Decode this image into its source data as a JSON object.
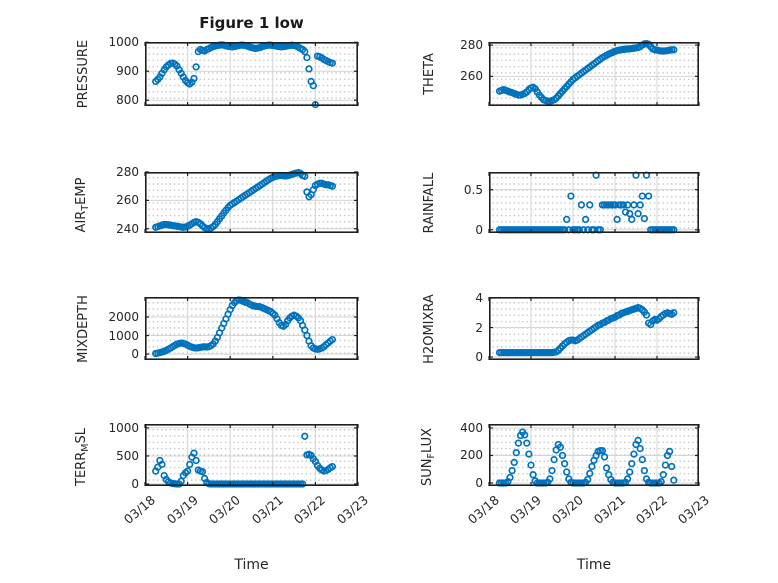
{
  "figure": {
    "title": "Figure 1 low",
    "xlabel": "Time",
    "marker_color": "#0072BD",
    "axis_color": "#1f1f1f",
    "grid_color": "#d4d4d4",
    "minor_grid_color": "#c8c8c8",
    "text_color": "#262626",
    "xlim": [
      0,
      5
    ],
    "xticks": [
      0,
      1,
      2,
      3,
      4,
      5
    ],
    "xtick_labels": [
      "03/18",
      "03/19",
      "03/20",
      "03/21",
      "03/22",
      "03/23"
    ],
    "time_days": [
      0.25,
      0.3,
      0.35,
      0.4,
      0.45,
      0.5,
      0.55,
      0.6,
      0.65,
      0.7,
      0.75,
      0.8,
      0.85,
      0.9,
      0.95,
      1.0,
      1.05,
      1.1,
      1.15,
      1.2,
      1.25,
      1.3,
      1.35,
      1.4,
      1.45,
      1.5,
      1.55,
      1.6,
      1.65,
      1.7,
      1.75,
      1.8,
      1.85,
      1.9,
      1.95,
      2.0,
      2.05,
      2.1,
      2.15,
      2.2,
      2.25,
      2.3,
      2.35,
      2.4,
      2.45,
      2.5,
      2.55,
      2.6,
      2.65,
      2.7,
      2.75,
      2.8,
      2.85,
      2.9,
      2.95,
      3.0,
      3.05,
      3.1,
      3.15,
      3.2,
      3.25,
      3.3,
      3.35,
      3.4,
      3.45,
      3.5,
      3.55,
      3.6,
      3.65,
      3.7,
      3.75,
      3.8,
      3.85,
      3.9,
      3.95,
      4.0,
      4.05,
      4.1,
      4.15,
      4.2,
      4.25,
      4.3,
      4.35,
      4.4
    ]
  },
  "chart_data": [
    {
      "id": "pressure",
      "name": "PRESSURE",
      "type": "scatter",
      "row": 0,
      "col": 0,
      "ylabel": [
        {
          "text": "PRESSURE"
        }
      ],
      "ylim": [
        780,
        1001
      ],
      "yticks": [
        800,
        900,
        1000
      ],
      "ytick_labels": [
        "800",
        "900",
        "1000"
      ],
      "values": [
        865,
        872,
        880,
        893,
        905,
        915,
        922,
        927,
        928,
        925,
        918,
        905,
        893,
        880,
        868,
        860,
        856,
        862,
        875,
        915,
        968,
        975,
        972,
        970,
        975,
        978,
        982,
        985,
        987,
        989,
        990,
        991,
        990,
        988,
        986,
        985,
        984,
        985,
        987,
        989,
        990,
        990,
        989,
        987,
        984,
        982,
        980,
        979,
        980,
        982,
        985,
        987,
        989,
        990,
        990,
        989,
        988,
        986,
        985,
        984,
        985,
        986,
        988,
        989,
        990,
        989,
        987,
        983,
        979,
        975,
        968,
        947,
        908,
        865,
        850,
        785,
        952,
        950,
        946,
        941,
        937,
        933,
        930,
        928
      ]
    },
    {
      "id": "theta",
      "name": "THETA",
      "type": "scatter",
      "row": 0,
      "col": 1,
      "ylabel": [
        {
          "text": "THETA"
        }
      ],
      "ylim": [
        241,
        282
      ],
      "yticks": [
        260,
        280
      ],
      "ytick_labels": [
        "260",
        "280"
      ],
      "values": [
        250.5,
        251,
        251.5,
        251,
        250.5,
        250,
        249.5,
        249,
        248.5,
        248,
        248,
        248.5,
        249,
        250,
        251.5,
        252.5,
        253,
        252,
        250,
        248,
        246.5,
        245,
        244.5,
        244,
        244,
        244.5,
        245,
        246,
        247.5,
        249,
        250.5,
        252,
        253.5,
        255,
        256.5,
        258,
        259,
        260,
        261,
        262,
        263,
        264,
        265,
        266,
        267,
        268,
        269,
        270,
        271,
        272,
        272.8,
        273.5,
        274.2,
        274.8,
        275.4,
        276,
        276.4,
        276.8,
        277,
        277.2,
        277.4,
        277.5,
        277.6,
        277.8,
        278,
        278.2,
        278.5,
        279,
        280,
        280.8,
        281,
        280.5,
        279,
        277.5,
        277,
        276.8,
        276.5,
        276.3,
        276.2,
        276.3,
        276.5,
        276.8,
        277,
        277
      ]
    },
    {
      "id": "air_temp",
      "name": "AIR_TEMP",
      "type": "scatter",
      "row": 1,
      "col": 0,
      "ylabel": [
        {
          "text": "AIR"
        },
        {
          "text": "T",
          "sub": true
        },
        {
          "text": "EMP"
        }
      ],
      "ylim": [
        237,
        280
      ],
      "yticks": [
        240,
        260,
        280
      ],
      "ytick_labels": [
        "240",
        "260",
        "280"
      ],
      "values": [
        241,
        241.5,
        242,
        242.5,
        243,
        243,
        242.8,
        242.5,
        242.2,
        242,
        241.8,
        241.5,
        241.2,
        241,
        241.2,
        241.8,
        242.5,
        243.5,
        244.5,
        245,
        244.5,
        243.5,
        242,
        240.8,
        240.2,
        240,
        240.5,
        241.5,
        243,
        245,
        247,
        249,
        251,
        253,
        255,
        256.5,
        257.5,
        258.5,
        259.5,
        260.5,
        261.5,
        262.5,
        263.5,
        264.5,
        265.5,
        266.5,
        267.5,
        268.5,
        269.5,
        270.5,
        271.5,
        272.5,
        273.5,
        274.5,
        275.5,
        276.2,
        276.8,
        277.2,
        277.5,
        277.5,
        277.3,
        277.2,
        277.4,
        277.8,
        278.3,
        278.8,
        279.2,
        279.5,
        279,
        277.5,
        277,
        266,
        262.5,
        264,
        267.5,
        270.5,
        271.5,
        272,
        272,
        271.5,
        271,
        271,
        270.5,
        270
      ]
    },
    {
      "id": "rainfall",
      "name": "RAINFALL",
      "type": "scatter",
      "row": 1,
      "col": 1,
      "ylabel": [
        {
          "text": "RAINFALL"
        }
      ],
      "ylim": [
        -0.04,
        0.72
      ],
      "yticks": [
        0,
        0.5
      ],
      "ytick_labels": [
        "0",
        "0.5"
      ],
      "values": [
        0,
        0,
        0,
        0,
        0,
        0,
        0,
        0,
        0,
        0,
        0,
        0,
        0,
        0,
        0,
        0,
        0,
        0,
        0,
        0,
        0,
        0,
        0,
        0,
        0,
        0,
        0,
        0,
        0,
        0,
        0,
        0,
        0.13,
        0,
        0.42,
        0,
        0,
        0,
        0,
        0.31,
        0,
        0.13,
        0,
        0.31,
        0,
        0,
        0.68,
        0,
        0,
        0.31,
        0.31,
        0.31,
        0.31,
        0.31,
        0.31,
        0.31,
        0.13,
        0.31,
        0.31,
        0.31,
        0.22,
        0.31,
        0.2,
        0.13,
        0.31,
        0.68,
        0.2,
        0.31,
        0.42,
        0.14,
        0.68,
        0.42,
        0,
        0,
        0,
        0,
        0,
        0,
        0,
        0,
        0,
        0,
        0,
        0
      ]
    },
    {
      "id": "mixdepth",
      "name": "MIXDEPTH",
      "type": "scatter",
      "row": 2,
      "col": 0,
      "ylabel": [
        {
          "text": "MIXDEPTH"
        }
      ],
      "ylim": [
        -320,
        3080
      ],
      "yticks": [
        0,
        1000,
        2000
      ],
      "ytick_labels": [
        "0",
        "1000",
        "2000"
      ],
      "values": [
        30,
        50,
        80,
        110,
        150,
        200,
        260,
        330,
        400,
        470,
        530,
        570,
        590,
        580,
        540,
        480,
        420,
        370,
        340,
        330,
        340,
        360,
        380,
        390,
        380,
        400,
        450,
        550,
        700,
        900,
        1150,
        1400,
        1650,
        1900,
        2150,
        2400,
        2620,
        2780,
        2880,
        2920,
        2900,
        2850,
        2800,
        2780,
        2700,
        2650,
        2600,
        2580,
        2560,
        2550,
        2500,
        2450,
        2400,
        2350,
        2300,
        2200,
        2100,
        1900,
        1700,
        1550,
        1500,
        1600,
        1800,
        1950,
        2050,
        2100,
        2050,
        1950,
        1800,
        1550,
        1300,
        1000,
        700,
        450,
        330,
        280,
        260,
        280,
        330,
        400,
        500,
        600,
        700,
        780
      ]
    },
    {
      "id": "h2omixra",
      "name": "H2OMIXRA",
      "type": "scatter",
      "row": 2,
      "col": 1,
      "ylabel": [
        {
          "text": "H2OMIXRA"
        }
      ],
      "ylim": [
        -0.2,
        4.07
      ],
      "yticks": [
        0,
        2,
        4
      ],
      "ytick_labels": [
        "0",
        "2",
        "4"
      ],
      "values": [
        0.3,
        0.3,
        0.3,
        0.3,
        0.3,
        0.3,
        0.3,
        0.3,
        0.3,
        0.3,
        0.3,
        0.3,
        0.3,
        0.3,
        0.3,
        0.3,
        0.3,
        0.3,
        0.3,
        0.3,
        0.3,
        0.3,
        0.3,
        0.3,
        0.3,
        0.3,
        0.32,
        0.35,
        0.45,
        0.6,
        0.75,
        0.9,
        1.0,
        1.1,
        1.15,
        1.15,
        1.1,
        1.15,
        1.25,
        1.35,
        1.45,
        1.55,
        1.65,
        1.75,
        1.85,
        1.95,
        2.05,
        2.15,
        2.2,
        2.3,
        2.35,
        2.45,
        2.5,
        2.6,
        2.65,
        2.7,
        2.8,
        2.85,
        2.95,
        3.0,
        3.05,
        3.1,
        3.15,
        3.2,
        3.25,
        3.3,
        3.35,
        3.3,
        3.2,
        3.05,
        2.85,
        2.3,
        2.2,
        2.45,
        2.55,
        2.5,
        2.6,
        2.75,
        2.85,
        2.95,
        3.0,
        2.95,
        2.9,
        3.0
      ]
    },
    {
      "id": "terr_msl",
      "name": "TERR_MSL",
      "type": "scatter",
      "row": 3,
      "col": 0,
      "ylabel": [
        {
          "text": "TERR"
        },
        {
          "text": "M",
          "sub": true
        },
        {
          "text": "SL"
        }
      ],
      "ylim": [
        -35,
        1070
      ],
      "yticks": [
        0,
        500,
        1000
      ],
      "ytick_labels": [
        "0",
        "500",
        "1000"
      ],
      "values": [
        230,
        300,
        420,
        350,
        150,
        80,
        40,
        20,
        10,
        5,
        0,
        0,
        50,
        150,
        200,
        230,
        350,
        480,
        550,
        420,
        250,
        230,
        220,
        100,
        30,
        5,
        0,
        0,
        0,
        0,
        0,
        0,
        0,
        0,
        0,
        0,
        0,
        0,
        0,
        0,
        0,
        0,
        0,
        0,
        0,
        0,
        0,
        0,
        0,
        0,
        0,
        0,
        0,
        0,
        0,
        0,
        0,
        0,
        0,
        0,
        0,
        0,
        0,
        0,
        0,
        0,
        0,
        0,
        0,
        0,
        850,
        520,
        530,
        510,
        450,
        400,
        330,
        280,
        250,
        230,
        240,
        260,
        290,
        310
      ]
    },
    {
      "id": "sun_flux",
      "name": "SUN_FLUX",
      "type": "scatter",
      "row": 3,
      "col": 1,
      "ylabel": [
        {
          "text": "SUN"
        },
        {
          "text": "F",
          "sub": true
        },
        {
          "text": "LUX"
        }
      ],
      "ylim": [
        -22,
        429
      ],
      "yticks": [
        0,
        200,
        400
      ],
      "ytick_labels": [
        "0",
        "200",
        "400"
      ],
      "values": [
        0,
        0,
        0,
        0,
        10,
        40,
        90,
        150,
        220,
        290,
        345,
        370,
        350,
        290,
        210,
        130,
        60,
        15,
        0,
        0,
        0,
        0,
        0,
        5,
        30,
        90,
        170,
        240,
        280,
        260,
        200,
        140,
        80,
        30,
        5,
        0,
        0,
        0,
        0,
        0,
        0,
        5,
        25,
        70,
        120,
        165,
        200,
        230,
        235,
        235,
        190,
        110,
        60,
        25,
        5,
        0,
        0,
        0,
        0,
        0,
        5,
        30,
        80,
        140,
        210,
        280,
        310,
        250,
        170,
        90,
        30,
        5,
        0,
        0,
        0,
        0,
        0,
        10,
        60,
        130,
        200,
        230,
        120,
        20
      ]
    }
  ]
}
